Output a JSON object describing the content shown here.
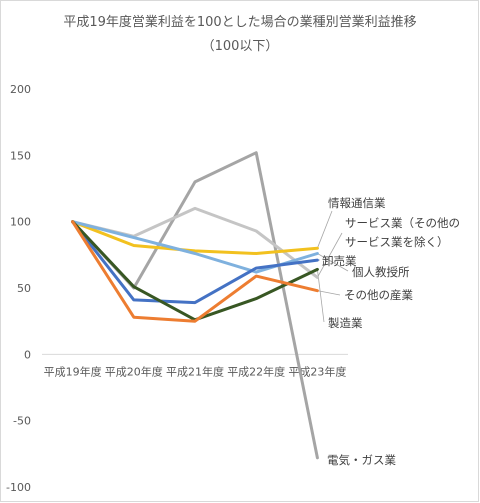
{
  "chart_data": {
    "type": "line",
    "title": "平成19年度営業利益を100とした場合の業種別営業利益推移",
    "subtitle": "（100以下）",
    "categories": [
      "平成19年度",
      "平成20年度",
      "平成21年度",
      "平成22年度",
      "平成23年度"
    ],
    "ylim": [
      -100,
      200
    ],
    "yticks": [
      -100,
      -50,
      0,
      50,
      100,
      150,
      200
    ],
    "grid": false,
    "legend": "none",
    "series": [
      {
        "name": "電気・ガス業",
        "color": "#a5a5a5",
        "values": [
          100,
          50,
          130,
          152,
          -78
        ]
      },
      {
        "name": "サービス業（その他のサービス業を除く）",
        "color": "#c5c5c5",
        "values": [
          100,
          89,
          110,
          93,
          58
        ]
      },
      {
        "name": "情報通信業",
        "color": "#f2c11f",
        "values": [
          100,
          82,
          78,
          76,
          80
        ]
      },
      {
        "name": "個人教授所",
        "color": "#7fb1de",
        "values": [
          100,
          88,
          76,
          62,
          76
        ]
      },
      {
        "name": "卸売業",
        "color": "#4472c4",
        "values": [
          100,
          41,
          39,
          65,
          71
        ]
      },
      {
        "name": "製造業",
        "color": "#385723",
        "values": [
          100,
          51,
          26,
          42,
          64
        ]
      },
      {
        "name": "その他の産業",
        "color": "#ed7d31",
        "values": [
          100,
          28,
          25,
          59,
          48
        ]
      }
    ],
    "annotations": [
      {
        "text": "情報通信業",
        "series": "情報通信業"
      },
      {
        "text": "サービス業（その他の",
        "series": "サービス業（その他のサービス業を除く）"
      },
      {
        "text": "サービス業を除く）",
        "series": "サービス業（その他のサービス業を除く）"
      },
      {
        "text": "卸売業",
        "series": "卸売業"
      },
      {
        "text": "個人教授所",
        "series": "個人教授所"
      },
      {
        "text": "その他の産業",
        "series": "その他の産業"
      },
      {
        "text": "製造業",
        "series": "製造業"
      },
      {
        "text": "電気・ガス業",
        "series": "電気・ガス業"
      }
    ]
  }
}
